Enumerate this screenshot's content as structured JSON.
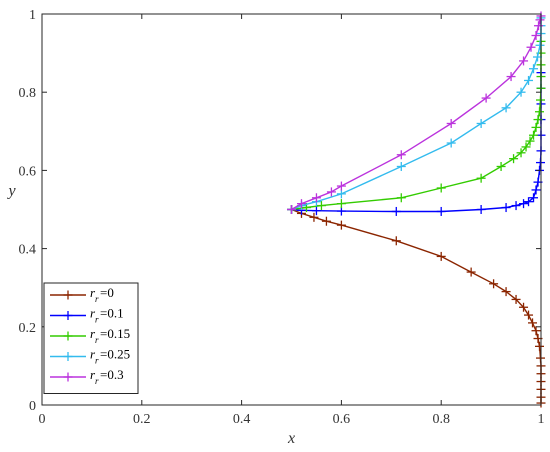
{
  "chart_data": {
    "type": "line",
    "xlabel": "x",
    "ylabel": "y",
    "xlim": [
      0,
      1
    ],
    "ylim": [
      0,
      1
    ],
    "xticks": [
      "0",
      "0.2",
      "0.4",
      "0.6",
      "0.8",
      "1"
    ],
    "yticks": [
      "0",
      "0.2",
      "0.4",
      "0.6",
      "0.8",
      "1"
    ],
    "legend_position": "bottom-left",
    "grid": false,
    "series": [
      {
        "name": "r_r=0",
        "legend_main": "r",
        "legend_sub": "r",
        "legend_value": "=0",
        "color": "#8B2500",
        "x": [
          0.5,
          0.52,
          0.545,
          0.57,
          0.6,
          0.71,
          0.8,
          0.86,
          0.905,
          0.93,
          0.95,
          0.965,
          0.975,
          0.983,
          0.99,
          0.994,
          0.997,
          0.999,
          1.0,
          1.0,
          1.0,
          1.0,
          1.0,
          1.0
        ],
        "y": [
          0.5,
          0.49,
          0.48,
          0.47,
          0.46,
          0.42,
          0.38,
          0.34,
          0.31,
          0.29,
          0.27,
          0.25,
          0.23,
          0.21,
          0.19,
          0.17,
          0.15,
          0.12,
          0.1,
          0.08,
          0.06,
          0.04,
          0.02,
          0.005
        ]
      },
      {
        "name": "r_r=0.1",
        "legend_main": "r",
        "legend_sub": "r",
        "legend_value": "=0.1",
        "color": "#0000FF",
        "x": [
          0.5,
          0.52,
          0.55,
          0.6,
          0.71,
          0.8,
          0.88,
          0.93,
          0.95,
          0.965,
          0.975,
          0.985,
          0.99,
          0.994,
          0.997,
          0.999,
          1.0,
          1.0,
          1.0,
          1.0,
          1.0,
          1.0
        ],
        "y": [
          0.5,
          0.498,
          0.497,
          0.496,
          0.495,
          0.495,
          0.5,
          0.505,
          0.51,
          0.515,
          0.52,
          0.53,
          0.55,
          0.57,
          0.6,
          0.62,
          0.65,
          0.69,
          0.73,
          0.77,
          0.81,
          0.85
        ]
      },
      {
        "name": "r_r=0.15",
        "legend_main": "r",
        "legend_sub": "r",
        "legend_value": "=0.15",
        "color": "#33CC00",
        "x": [
          0.5,
          0.53,
          0.56,
          0.6,
          0.72,
          0.8,
          0.88,
          0.92,
          0.945,
          0.96,
          0.97,
          0.978,
          0.985,
          0.99,
          0.994,
          0.997,
          0.999,
          1.0,
          1.0,
          1.0,
          1.0,
          1.0
        ],
        "y": [
          0.5,
          0.505,
          0.51,
          0.515,
          0.53,
          0.555,
          0.58,
          0.61,
          0.63,
          0.645,
          0.66,
          0.675,
          0.69,
          0.71,
          0.73,
          0.75,
          0.78,
          0.81,
          0.84,
          0.87,
          0.9,
          0.93
        ]
      },
      {
        "name": "r_r=0.25",
        "legend_main": "r",
        "legend_sub": "r",
        "legend_value": "=0.25",
        "color": "#33BBEE",
        "x": [
          0.5,
          0.52,
          0.55,
          0.6,
          0.72,
          0.82,
          0.88,
          0.93,
          0.96,
          0.975,
          0.985,
          0.993,
          0.998,
          1.0,
          1.0,
          1.0
        ],
        "y": [
          0.5,
          0.51,
          0.52,
          0.54,
          0.61,
          0.67,
          0.72,
          0.76,
          0.8,
          0.83,
          0.86,
          0.89,
          0.92,
          0.95,
          0.97,
          0.99
        ]
      },
      {
        "name": "r_r=0.3",
        "legend_main": "r",
        "legend_sub": "r",
        "legend_value": "=0.3",
        "color": "#BB33DD",
        "x": [
          0.5,
          0.52,
          0.55,
          0.58,
          0.6,
          0.72,
          0.82,
          0.89,
          0.94,
          0.965,
          0.98,
          0.99,
          0.995,
          0.998,
          1.0
        ],
        "y": [
          0.5,
          0.515,
          0.53,
          0.545,
          0.56,
          0.64,
          0.72,
          0.785,
          0.84,
          0.88,
          0.915,
          0.945,
          0.97,
          0.985,
          0.995
        ]
      }
    ]
  }
}
